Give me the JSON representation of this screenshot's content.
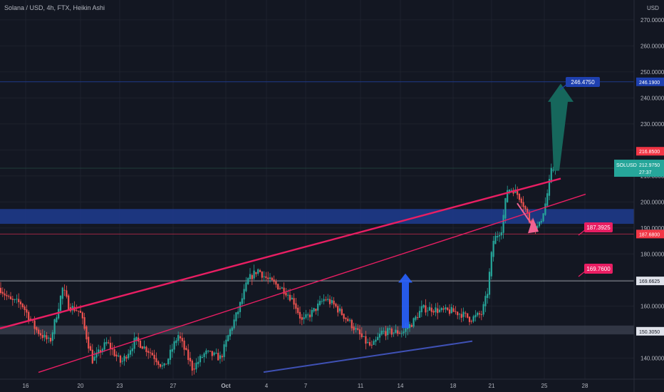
{
  "header": {
    "symbol_line": "Solana / USD, 4h, FTX, Heikin Ashi",
    "currency": "USD"
  },
  "colors": {
    "background": "#131722",
    "grid": "#1e222d",
    "up": "#26a69a",
    "down": "#ef5350",
    "trendline": "#e91e63",
    "support_line": "#3f51b5",
    "zone": "#1e3a8a",
    "target_arrow": "#16675c",
    "small_arrow": "#2962ff"
  },
  "chart_data": {
    "type": "candlestick",
    "y_axis": {
      "range": [
        134,
        279
      ],
      "ticks": [
        "270.0000",
        "260.0000",
        "250.0000",
        "240.0000",
        "230.0000",
        "220.0000",
        "210.0000",
        "200.0000",
        "190.0000",
        "180.0000",
        "170.0000",
        "160.0000",
        "150.0000",
        "140.0000"
      ]
    },
    "x_axis": {
      "labels": [
        "16",
        "20",
        "23",
        "27",
        "Oct",
        "4",
        "7",
        "11",
        "14",
        "18",
        "21",
        "25",
        "28"
      ]
    },
    "price_labels": [
      {
        "id": "target-top",
        "value": "246.1900",
        "tag": "",
        "color": "#1e40af"
      },
      {
        "id": "high",
        "value": "216.8500",
        "tag": "",
        "color": "#f23645"
      },
      {
        "id": "last",
        "value": "212.9750",
        "tag": "SOLUSD",
        "sub": "27:37",
        "color": "#26a69a"
      },
      {
        "id": "level-187",
        "value": "187.6800",
        "tag": "",
        "color": "#f23645"
      },
      {
        "id": "level-169",
        "value": "169.6625",
        "tag": "",
        "color": "#e0e3eb"
      },
      {
        "id": "level-150",
        "value": "150.3050",
        "tag": "",
        "color": "#e0e3eb"
      }
    ],
    "callouts": [
      {
        "id": "callout-target",
        "text": "246.4750",
        "color": "#1e40af"
      },
      {
        "id": "callout-187",
        "text": "187.3925",
        "color": "#e91e63"
      },
      {
        "id": "callout-169",
        "text": "169.7600",
        "color": "#e91e63"
      }
    ]
  }
}
